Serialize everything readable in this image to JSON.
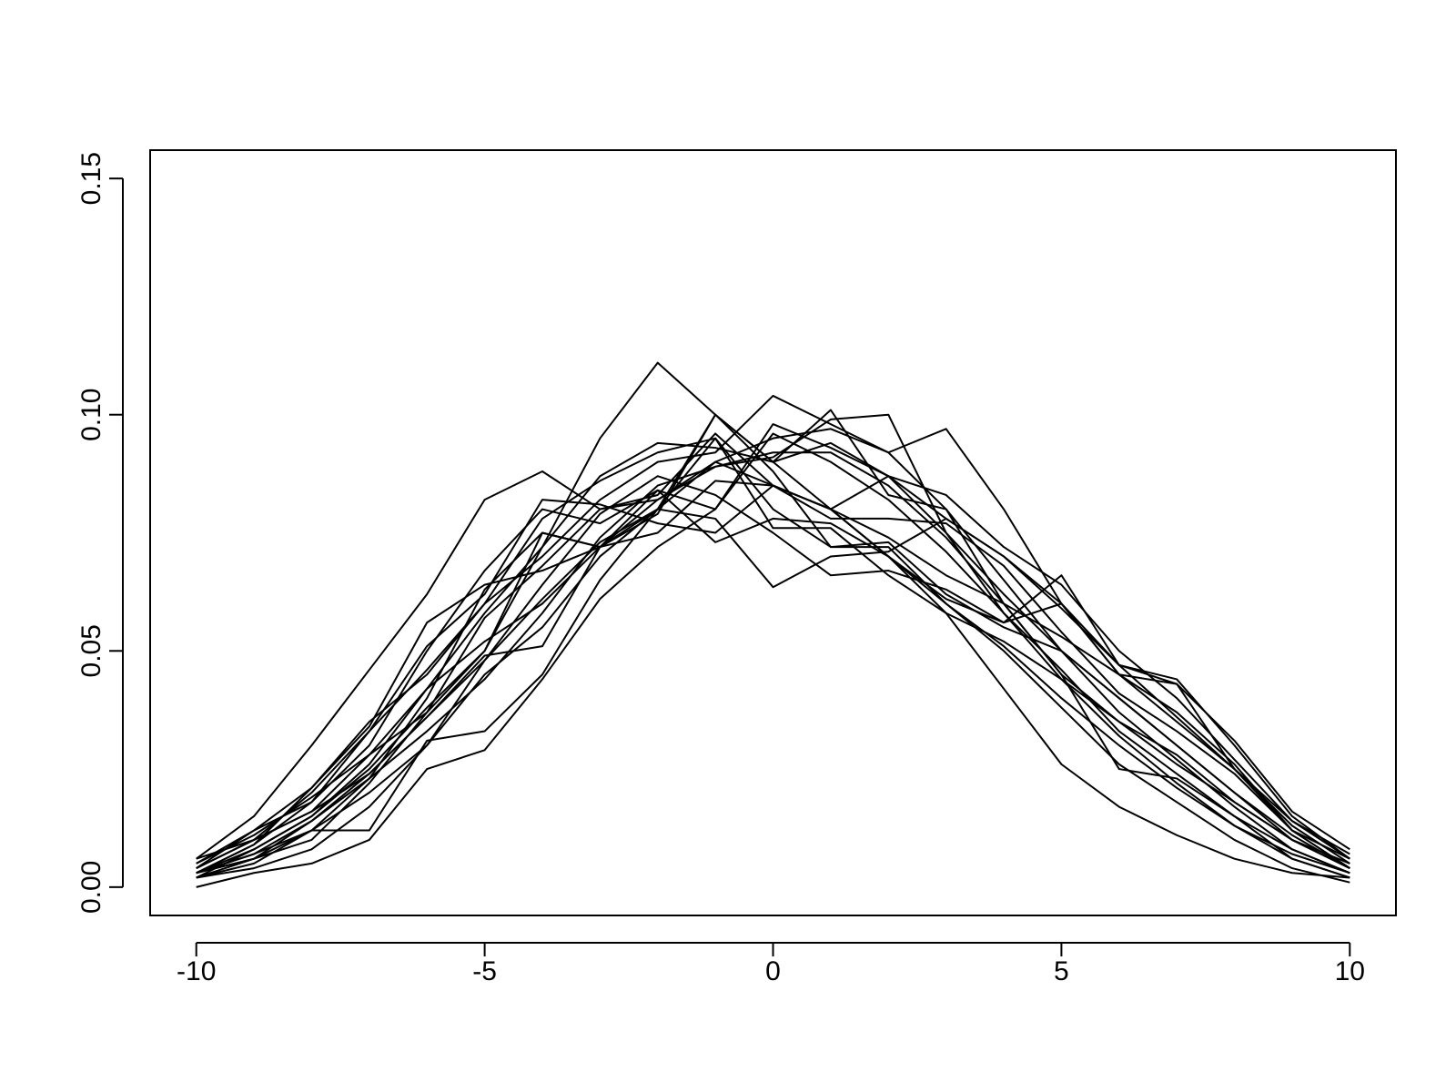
{
  "chart_data": {
    "type": "line",
    "x": [
      -10,
      -9,
      -8,
      -7,
      -6,
      -5,
      -4,
      -3,
      -2,
      -1,
      0,
      1,
      2,
      3,
      4,
      5,
      6,
      7,
      8,
      9,
      10
    ],
    "xlim": [
      -10.8,
      10.8
    ],
    "xticks": [
      -10,
      -5,
      0,
      5,
      10
    ],
    "ylim": [
      -0.006,
      0.156
    ],
    "yticks": [
      {
        "value": 0,
        "label": "0.00"
      },
      {
        "value": 0.05,
        "label": "0.05"
      },
      {
        "value": 0.1,
        "label": "0.10"
      },
      {
        "value": 0.15,
        "label": "0.15"
      }
    ],
    "series": [
      {
        "color": "#000000",
        "values": [
          0.003,
          0.008,
          0.015,
          0.025,
          0.038,
          0.05,
          0.072,
          0.095,
          0.111,
          0.1,
          0.09,
          0.08,
          0.07,
          0.06,
          0.051,
          0.04,
          0.03,
          0.021,
          0.013,
          0.007,
          0.003
        ]
      },
      {
        "color": "#000000",
        "values": [
          0.006,
          0.015,
          0.03,
          0.046,
          0.062,
          0.082,
          0.088,
          0.08,
          0.082,
          0.09,
          0.085,
          0.08,
          0.07,
          0.058,
          0.042,
          0.026,
          0.017,
          0.011,
          0.006,
          0.003,
          0.002
        ]
      },
      {
        "color": "#000000",
        "values": [
          0.003,
          0.006,
          0.012,
          0.02,
          0.03,
          0.045,
          0.055,
          0.07,
          0.08,
          0.09,
          0.095,
          0.097,
          0.092,
          0.097,
          0.08,
          0.06,
          0.045,
          0.043,
          0.025,
          0.012,
          0.004
        ]
      },
      {
        "color": "#000000",
        "values": [
          0.002,
          0.006,
          0.014,
          0.024,
          0.036,
          0.048,
          0.061,
          0.073,
          0.08,
          0.078,
          0.0635,
          0.07,
          0.071,
          0.078,
          0.07,
          0.059,
          0.047,
          0.036,
          0.025,
          0.013,
          0.005
        ]
      },
      {
        "color": "#000000",
        "values": [
          0.002,
          0.005,
          0.012,
          0.023,
          0.04,
          0.063,
          0.075,
          0.072,
          0.08,
          0.1,
          0.09,
          0.101,
          0.083,
          0.08,
          0.065,
          0.05,
          0.04,
          0.03,
          0.02,
          0.01,
          0.005
        ]
      },
      {
        "color": "#000000",
        "values": [
          0.004,
          0.01,
          0.02,
          0.033,
          0.046,
          0.06,
          0.07,
          0.082,
          0.09,
          0.092,
          0.104,
          0.098,
          0.092,
          0.08,
          0.06,
          0.045,
          0.035,
          0.028,
          0.018,
          0.01,
          0.004
        ]
      },
      {
        "color": "#000000",
        "values": [
          0.0,
          0.003,
          0.005,
          0.01,
          0.025,
          0.029,
          0.044,
          0.061,
          0.072,
          0.08,
          0.098,
          0.093,
          0.087,
          0.078,
          0.07,
          0.06,
          0.047,
          0.044,
          0.03,
          0.015,
          0.006
        ]
      },
      {
        "color": "#000000",
        "values": [
          0.003,
          0.007,
          0.012,
          0.012,
          0.031,
          0.033,
          0.045,
          0.065,
          0.08,
          0.095,
          0.076,
          0.076,
          0.066,
          0.058,
          0.052,
          0.044,
          0.035,
          0.026,
          0.018,
          0.01,
          0.004
        ]
      },
      {
        "color": "#000000",
        "values": [
          0.005,
          0.012,
          0.018,
          0.03,
          0.05,
          0.067,
          0.08,
          0.077,
          0.084,
          0.073,
          0.078,
          0.077,
          0.07,
          0.061,
          0.056,
          0.06,
          0.045,
          0.037,
          0.026,
          0.012,
          0.004
        ]
      },
      {
        "color": "#000000",
        "values": [
          0.003,
          0.009,
          0.021,
          0.034,
          0.056,
          0.064,
          0.067,
          0.072,
          0.075,
          0.086,
          0.085,
          0.08,
          0.087,
          0.083,
          0.072,
          0.064,
          0.05,
          0.04,
          0.027,
          0.014,
          0.006
        ]
      },
      {
        "color": "#000000",
        "values": [
          0.002,
          0.008,
          0.015,
          0.026,
          0.042,
          0.058,
          0.072,
          0.087,
          0.094,
          0.093,
          0.09,
          0.094,
          0.087,
          0.075,
          0.062,
          0.05,
          0.037,
          0.027,
          0.017,
          0.008,
          0.003
        ]
      },
      {
        "color": "#000000",
        "values": [
          0.004,
          0.01,
          0.016,
          0.024,
          0.036,
          0.049,
          0.051,
          0.072,
          0.084,
          0.08,
          0.096,
          0.09,
          0.082,
          0.071,
          0.058,
          0.046,
          0.033,
          0.024,
          0.015,
          0.008,
          0.003
        ]
      },
      {
        "color": "#000000",
        "values": [
          0.003,
          0.006,
          0.01,
          0.022,
          0.037,
          0.05,
          0.075,
          0.072,
          0.079,
          0.1,
          0.088,
          0.072,
          0.073,
          0.062,
          0.055,
          0.05,
          0.04,
          0.03,
          0.02,
          0.011,
          0.004
        ]
      },
      {
        "color": "#000000",
        "values": [
          0.003,
          0.007,
          0.014,
          0.023,
          0.033,
          0.044,
          0.058,
          0.074,
          0.085,
          0.089,
          0.092,
          0.092,
          0.085,
          0.074,
          0.06,
          0.045,
          0.025,
          0.023,
          0.015,
          0.006,
          0.002
        ]
      },
      {
        "color": "#000000",
        "values": [
          0.006,
          0.01,
          0.016,
          0.028,
          0.037,
          0.057,
          0.068,
          0.08,
          0.083,
          0.096,
          0.085,
          0.078,
          0.078,
          0.077,
          0.068,
          0.054,
          0.041,
          0.033,
          0.024,
          0.012,
          0.006
        ]
      },
      {
        "color": "#000000",
        "values": [
          0.003,
          0.009,
          0.018,
          0.033,
          0.051,
          0.062,
          0.082,
          0.081,
          0.077,
          0.075,
          0.085,
          0.08,
          0.074,
          0.066,
          0.06,
          0.053,
          0.045,
          0.035,
          0.025,
          0.014,
          0.007
        ]
      },
      {
        "color": "#000000",
        "values": [
          0.002,
          0.004,
          0.008,
          0.017,
          0.03,
          0.048,
          0.064,
          0.079,
          0.087,
          0.083,
          0.075,
          0.066,
          0.067,
          0.063,
          0.056,
          0.066,
          0.047,
          0.043,
          0.031,
          0.016,
          0.008
        ]
      },
      {
        "color": "#000000",
        "values": [
          0.005,
          0.011,
          0.019,
          0.028,
          0.042,
          0.052,
          0.06,
          0.072,
          0.082,
          0.089,
          0.091,
          0.099,
          0.1,
          0.075,
          0.058,
          0.044,
          0.032,
          0.022,
          0.013,
          0.006,
          0.002
        ]
      },
      {
        "color": "#000000",
        "values": [
          0.004,
          0.012,
          0.021,
          0.035,
          0.045,
          0.06,
          0.078,
          0.086,
          0.092,
          0.095,
          0.08,
          0.072,
          0.072,
          0.06,
          0.05,
          0.038,
          0.026,
          0.018,
          0.01,
          0.004,
          0.001
        ]
      }
    ]
  }
}
